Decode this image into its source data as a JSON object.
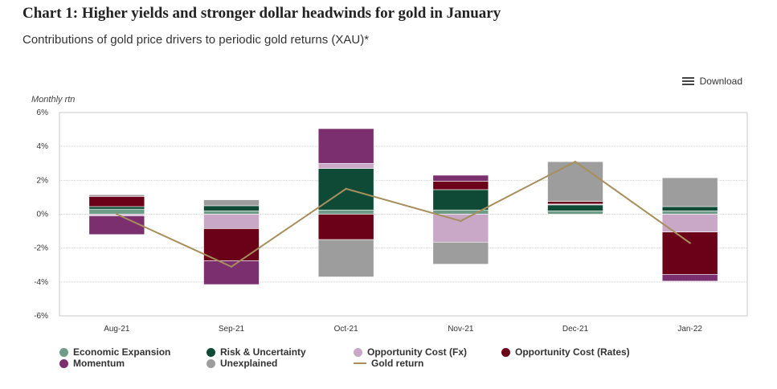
{
  "header": {
    "title": "Chart 1: Higher yields and stronger dollar headwinds for gold in January",
    "subtitle": "Contributions of gold price drivers to periodic gold returns (XAU)*",
    "download_label": "Download"
  },
  "chart_data": {
    "type": "bar",
    "stacked": true,
    "ylabel": "Monthly rtn",
    "ylim": [
      -6,
      6
    ],
    "yticks": [
      "6%",
      "4%",
      "2%",
      "0%",
      "-2%",
      "-4%",
      "-6%"
    ],
    "categories": [
      "Aug-21",
      "Sep-21",
      "Oct-21",
      "Nov-21",
      "Dec-21",
      "Jan-22"
    ],
    "series": [
      {
        "name": "Economic Expansion",
        "color": "#6f9c88",
        "values": [
          0.3,
          0.2,
          0.25,
          0.25,
          0.2,
          0.2
        ]
      },
      {
        "name": "Risk & Uncertainty",
        "color": "#0e4a35",
        "values": [
          0.15,
          0.3,
          2.45,
          1.2,
          0.35,
          0.25
        ]
      },
      {
        "name": "Opportunity Cost (Fx)",
        "color": "#c9a7c7",
        "values": [
          -0.1,
          -0.85,
          0.3,
          -1.65,
          0.05,
          -1.05
        ]
      },
      {
        "name": "Opportunity Cost (Rates)",
        "color": "#6b0019",
        "values": [
          0.6,
          -1.9,
          -1.5,
          0.5,
          0.15,
          -2.5
        ]
      },
      {
        "name": "Momentum",
        "color": "#7b2f6e",
        "values": [
          -1.1,
          -1.4,
          2.05,
          0.35,
          0.0,
          -0.4
        ]
      },
      {
        "name": "Unexplained",
        "color": "#9d9d9d",
        "values": [
          0.1,
          0.35,
          -2.2,
          -1.3,
          2.35,
          1.7
        ]
      }
    ],
    "line": {
      "name": "Gold return",
      "color": "#a68f5d",
      "values": [
        0.0,
        -3.1,
        1.5,
        -0.4,
        3.1,
        -1.7
      ]
    },
    "grid": true,
    "legend_position": "bottom"
  }
}
